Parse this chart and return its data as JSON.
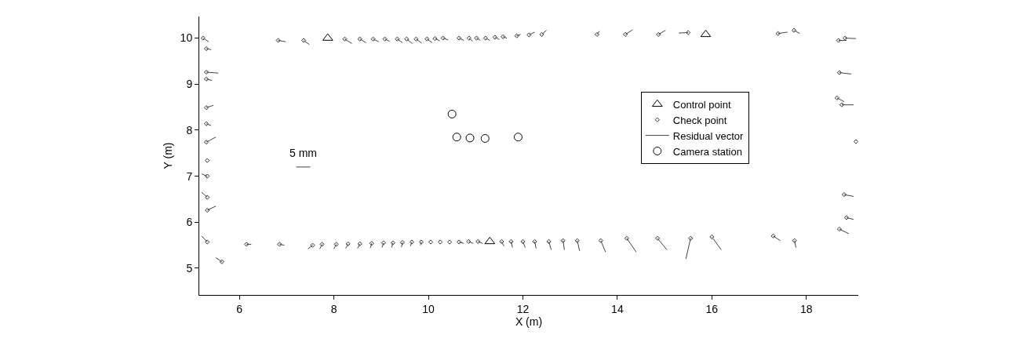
{
  "chart_data": {
    "type": "scatter",
    "xlabel": "X (m)",
    "ylabel": "Y (m)",
    "xlim": [
      5.15,
      19.1
    ],
    "ylim": [
      4.42,
      10.47
    ],
    "xticks": [
      6,
      8,
      10,
      12,
      14,
      16,
      18
    ],
    "yticks": [
      5,
      6,
      7,
      8,
      9,
      10
    ],
    "grid": false,
    "legend": "right",
    "annotations": [
      "5 mm"
    ],
    "series": [
      {
        "name": "Control point",
        "marker": "triangle",
        "color": "#000000",
        "x": [
          7.87,
          15.87,
          11.3
        ],
        "values": [
          10.0,
          10.08,
          5.58
        ]
      },
      {
        "name": "Check point",
        "marker": "diamond",
        "color": "#333333",
        "x": [
          5.23,
          6.82,
          7.36,
          8.23,
          8.55,
          8.83,
          9.08,
          9.34,
          9.54,
          9.74,
          9.97,
          10.14,
          10.31,
          10.65,
          10.86,
          11.02,
          11.21,
          11.41,
          11.58,
          11.87,
          12.13,
          12.4,
          13.57,
          14.17,
          14.87,
          15.5,
          17.4,
          17.74,
          18.68,
          18.82,
          5.3,
          5.3,
          5.3,
          5.3,
          5.3,
          5.3,
          5.32,
          5.32,
          5.32,
          5.32,
          5.32,
          5.63,
          6.15,
          6.85,
          7.55,
          7.75,
          8.05,
          8.3,
          8.55,
          8.8,
          9.05,
          9.25,
          9.45,
          9.65,
          9.85,
          10.05,
          10.25,
          10.45,
          10.65,
          10.85,
          11.05,
          11.55,
          11.75,
          12.0,
          12.25,
          12.55,
          12.85,
          13.15,
          13.65,
          14.2,
          14.85,
          15.55,
          16.0,
          17.3,
          17.75,
          18.7,
          18.65,
          18.75,
          19.05,
          18.8,
          18.85,
          18.7
        ],
        "values": [
          10.0,
          9.95,
          9.95,
          9.98,
          9.98,
          9.98,
          9.98,
          9.98,
          9.98,
          9.98,
          9.98,
          9.99,
          10.0,
          10.0,
          10.0,
          10.0,
          10.0,
          10.02,
          10.03,
          10.05,
          10.07,
          10.08,
          10.08,
          10.08,
          10.08,
          10.12,
          10.1,
          10.17,
          9.95,
          10.0,
          9.77,
          9.26,
          9.11,
          8.49,
          8.14,
          7.74,
          7.34,
          7.0,
          6.54,
          6.26,
          5.57,
          5.14,
          5.52,
          5.52,
          5.5,
          5.52,
          5.52,
          5.53,
          5.53,
          5.54,
          5.55,
          5.55,
          5.56,
          5.57,
          5.57,
          5.57,
          5.57,
          5.57,
          5.57,
          5.58,
          5.58,
          5.58,
          5.58,
          5.58,
          5.58,
          5.58,
          5.6,
          5.6,
          5.6,
          5.65,
          5.65,
          5.65,
          5.68,
          5.7,
          5.6,
          9.25,
          8.7,
          8.55,
          7.75,
          6.6,
          6.1,
          5.85
        ]
      },
      {
        "name": "Residual vector",
        "type": "line",
        "color": "#444444",
        "x": [
          5.23,
          5.35
        ],
        "values": [
          10.0,
          9.92
        ]
      },
      {
        "type": "line",
        "color": "#444444",
        "x": [
          6.82,
          6.98
        ],
        "values": [
          9.95,
          9.92
        ]
      },
      {
        "type": "line",
        "color": "#444444",
        "x": [
          7.36,
          7.48
        ],
        "values": [
          9.95,
          9.86
        ]
      },
      {
        "type": "line",
        "color": "#444444",
        "x": [
          8.23,
          8.38
        ],
        "values": [
          9.98,
          9.88
        ]
      },
      {
        "type": "line",
        "color": "#444444",
        "x": [
          8.55,
          8.68
        ],
        "values": [
          9.98,
          9.9
        ]
      },
      {
        "type": "line",
        "color": "#444444",
        "x": [
          8.83,
          8.95
        ],
        "values": [
          9.98,
          9.92
        ]
      },
      {
        "type": "line",
        "color": "#444444",
        "x": [
          9.08,
          9.18
        ],
        "values": [
          9.98,
          9.93
        ]
      },
      {
        "type": "line",
        "color": "#444444",
        "x": [
          9.34,
          9.45
        ],
        "values": [
          9.98,
          9.9
        ]
      },
      {
        "type": "line",
        "color": "#444444",
        "x": [
          9.54,
          9.66
        ],
        "values": [
          9.98,
          9.88
        ]
      },
      {
        "type": "line",
        "color": "#444444",
        "x": [
          9.74,
          9.86
        ],
        "values": [
          9.98,
          9.89
        ]
      },
      {
        "type": "line",
        "color": "#444444",
        "x": [
          9.97,
          10.08
        ],
        "values": [
          9.98,
          9.9
        ]
      },
      {
        "type": "line",
        "color": "#444444",
        "x": [
          10.14,
          10.24
        ],
        "values": [
          9.99,
          9.94
        ]
      },
      {
        "type": "line",
        "color": "#444444",
        "x": [
          10.31,
          10.42
        ],
        "values": [
          10.0,
          9.96
        ]
      },
      {
        "type": "line",
        "color": "#444444",
        "x": [
          10.65,
          10.75
        ],
        "values": [
          10.0,
          9.95
        ]
      },
      {
        "type": "line",
        "color": "#444444",
        "x": [
          10.86,
          10.94
        ],
        "values": [
          10.0,
          9.93
        ]
      },
      {
        "type": "line",
        "color": "#444444",
        "x": [
          11.02,
          11.1
        ],
        "values": [
          10.0,
          9.95
        ]
      },
      {
        "type": "line",
        "color": "#444444",
        "x": [
          11.21,
          11.3
        ],
        "values": [
          10.0,
          9.95
        ]
      },
      {
        "type": "line",
        "color": "#444444",
        "x": [
          11.41,
          11.5
        ],
        "values": [
          10.02,
          9.97
        ]
      },
      {
        "type": "line",
        "color": "#444444",
        "x": [
          11.58,
          11.66
        ],
        "values": [
          10.03,
          10.0
        ]
      },
      {
        "type": "line",
        "color": "#444444",
        "x": [
          11.87,
          11.95
        ],
        "values": [
          10.05,
          10.08
        ]
      },
      {
        "type": "line",
        "color": "#444444",
        "x": [
          12.13,
          12.25
        ],
        "values": [
          10.07,
          10.13
        ]
      },
      {
        "type": "line",
        "color": "#444444",
        "x": [
          12.4,
          12.5
        ],
        "values": [
          10.08,
          10.17
        ]
      },
      {
        "type": "line",
        "color": "#444444",
        "x": [
          13.57,
          13.62
        ],
        "values": [
          10.08,
          10.15
        ]
      },
      {
        "type": "line",
        "color": "#444444",
        "x": [
          14.17,
          14.32
        ],
        "values": [
          10.08,
          10.18
        ]
      },
      {
        "type": "line",
        "color": "#444444",
        "x": [
          14.87,
          15.02
        ],
        "values": [
          10.08,
          10.17
        ]
      },
      {
        "type": "line",
        "color": "#444444",
        "x": [
          15.3,
          15.5
        ],
        "values": [
          10.11,
          10.12
        ]
      },
      {
        "type": "line",
        "color": "#444444",
        "x": [
          17.4,
          17.6
        ],
        "values": [
          10.1,
          10.13
        ]
      },
      {
        "type": "line",
        "color": "#444444",
        "x": [
          17.74,
          17.86
        ],
        "values": [
          10.17,
          10.1
        ]
      },
      {
        "type": "line",
        "color": "#444444",
        "x": [
          18.68,
          18.85
        ],
        "values": [
          9.95,
          9.95
        ]
      },
      {
        "type": "line",
        "color": "#444444",
        "x": [
          18.82,
          19.05
        ],
        "values": [
          10.0,
          9.99
        ]
      },
      {
        "type": "line",
        "color": "#444444",
        "x": [
          5.3,
          5.4
        ],
        "values": [
          9.77,
          9.75
        ]
      },
      {
        "type": "line",
        "color": "#444444",
        "x": [
          5.3,
          5.55
        ],
        "values": [
          9.26,
          9.24
        ]
      },
      {
        "type": "line",
        "color": "#444444",
        "x": [
          5.3,
          5.42
        ],
        "values": [
          9.11,
          9.08
        ]
      },
      {
        "type": "line",
        "color": "#444444",
        "x": [
          5.3,
          5.45
        ],
        "values": [
          8.49,
          8.54
        ]
      },
      {
        "type": "line",
        "color": "#444444",
        "x": [
          5.3,
          5.4
        ],
        "values": [
          8.14,
          8.1
        ]
      },
      {
        "type": "line",
        "color": "#444444",
        "x": [
          5.3,
          5.5
        ],
        "values": [
          7.74,
          7.85
        ]
      },
      {
        "type": "line",
        "color": "#444444",
        "x": [
          5.2,
          5.32
        ],
        "values": [
          7.05,
          7.0
        ]
      },
      {
        "type": "line",
        "color": "#444444",
        "x": [
          5.2,
          5.32
        ],
        "values": [
          6.65,
          6.54
        ]
      },
      {
        "type": "line",
        "color": "#444444",
        "x": [
          5.32,
          5.5
        ],
        "values": [
          6.26,
          6.35
        ]
      },
      {
        "type": "line",
        "color": "#444444",
        "x": [
          5.2,
          5.32
        ],
        "values": [
          5.7,
          5.57
        ]
      },
      {
        "type": "line",
        "color": "#444444",
        "x": [
          5.5,
          5.63
        ],
        "values": [
          5.23,
          5.14
        ]
      },
      {
        "type": "line",
        "color": "#444444",
        "x": [
          6.15,
          6.25
        ],
        "values": [
          5.52,
          5.52
        ]
      },
      {
        "type": "line",
        "color": "#444444",
        "x": [
          6.85,
          6.95
        ],
        "values": [
          5.52,
          5.5
        ]
      },
      {
        "type": "line",
        "color": "#444444",
        "x": [
          7.45,
          7.55
        ],
        "values": [
          5.42,
          5.5
        ]
      },
      {
        "type": "line",
        "color": "#444444",
        "x": [
          7.7,
          7.75
        ],
        "values": [
          5.42,
          5.52
        ]
      },
      {
        "type": "line",
        "color": "#444444",
        "x": [
          8.0,
          8.05
        ],
        "values": [
          5.42,
          5.52
        ]
      },
      {
        "type": "line",
        "color": "#444444",
        "x": [
          8.25,
          8.3
        ],
        "values": [
          5.43,
          5.53
        ]
      },
      {
        "type": "line",
        "color": "#444444",
        "x": [
          8.5,
          8.55
        ],
        "values": [
          5.43,
          5.53
        ]
      },
      {
        "type": "line",
        "color": "#444444",
        "x": [
          8.77,
          8.8
        ],
        "values": [
          5.44,
          5.54
        ]
      },
      {
        "type": "line",
        "color": "#444444",
        "x": [
          9.02,
          9.05
        ],
        "values": [
          5.45,
          5.55
        ]
      },
      {
        "type": "line",
        "color": "#444444",
        "x": [
          9.22,
          9.25
        ],
        "values": [
          5.45,
          5.55
        ]
      },
      {
        "type": "line",
        "color": "#444444",
        "x": [
          9.43,
          9.45
        ],
        "values": [
          5.46,
          5.56
        ]
      },
      {
        "type": "line",
        "color": "#444444",
        "x": [
          9.62,
          9.65
        ],
        "values": [
          5.48,
          5.57
        ]
      },
      {
        "type": "line",
        "color": "#444444",
        "x": [
          9.83,
          9.85
        ],
        "values": [
          5.5,
          5.57
        ]
      },
      {
        "type": "line",
        "color": "#444444",
        "x": [
          10.65,
          10.75
        ],
        "values": [
          5.57,
          5.54
        ]
      },
      {
        "type": "line",
        "color": "#444444",
        "x": [
          10.85,
          10.95
        ],
        "values": [
          5.58,
          5.54
        ]
      },
      {
        "type": "line",
        "color": "#444444",
        "x": [
          11.05,
          11.15
        ],
        "values": [
          5.58,
          5.54
        ]
      },
      {
        "type": "line",
        "color": "#444444",
        "x": [
          11.55,
          11.6
        ],
        "values": [
          5.58,
          5.48
        ]
      },
      {
        "type": "line",
        "color": "#444444",
        "x": [
          11.75,
          11.78
        ],
        "values": [
          5.58,
          5.45
        ]
      },
      {
        "type": "line",
        "color": "#444444",
        "x": [
          12.0,
          12.05
        ],
        "values": [
          5.58,
          5.45
        ]
      },
      {
        "type": "line",
        "color": "#444444",
        "x": [
          12.25,
          12.28
        ],
        "values": [
          5.58,
          5.43
        ]
      },
      {
        "type": "line",
        "color": "#444444",
        "x": [
          12.55,
          12.6
        ],
        "values": [
          5.58,
          5.4
        ]
      },
      {
        "type": "line",
        "color": "#444444",
        "x": [
          12.85,
          12.88
        ],
        "values": [
          5.6,
          5.4
        ]
      },
      {
        "type": "line",
        "color": "#444444",
        "x": [
          13.15,
          13.2
        ],
        "values": [
          5.6,
          5.38
        ]
      },
      {
        "type": "line",
        "color": "#444444",
        "x": [
          13.65,
          13.75
        ],
        "values": [
          5.6,
          5.35
        ]
      },
      {
        "type": "line",
        "color": "#444444",
        "x": [
          14.2,
          14.4
        ],
        "values": [
          5.65,
          5.35
        ]
      },
      {
        "type": "line",
        "color": "#444444",
        "x": [
          14.85,
          15.05
        ],
        "values": [
          5.65,
          5.4
        ]
      },
      {
        "type": "line",
        "color": "#444444",
        "x": [
          15.45,
          15.55
        ],
        "values": [
          5.2,
          5.65
        ]
      },
      {
        "type": "line",
        "color": "#444444",
        "x": [
          16.0,
          16.2
        ],
        "values": [
          5.68,
          5.4
        ]
      },
      {
        "type": "line",
        "color": "#444444",
        "x": [
          17.3,
          17.45
        ],
        "values": [
          5.7,
          5.6
        ]
      },
      {
        "type": "line",
        "color": "#444444",
        "x": [
          17.75,
          17.78
        ],
        "values": [
          5.6,
          5.45
        ]
      },
      {
        "type": "line",
        "color": "#444444",
        "x": [
          18.7,
          18.95
        ],
        "values": [
          9.25,
          9.22
        ]
      },
      {
        "type": "line",
        "color": "#444444",
        "x": [
          18.65,
          18.8
        ],
        "values": [
          8.7,
          8.62
        ]
      },
      {
        "type": "line",
        "color": "#444444",
        "x": [
          18.75,
          19.0
        ],
        "values": [
          8.55,
          8.55
        ]
      },
      {
        "type": "line",
        "color": "#444444",
        "x": [
          18.8,
          19.0
        ],
        "values": [
          6.6,
          6.56
        ]
      },
      {
        "type": "line",
        "color": "#444444",
        "x": [
          18.85,
          19.0
        ],
        "values": [
          6.1,
          6.06
        ]
      },
      {
        "type": "line",
        "color": "#444444",
        "x": [
          18.7,
          18.9
        ],
        "values": [
          5.85,
          5.75
        ]
      },
      {
        "type": "line",
        "color": "#444444",
        "x": [
          7.2,
          7.5
        ],
        "values": [
          7.2,
          7.2
        ]
      },
      {
        "name": "Camera station",
        "marker": "circle",
        "color": "#000000",
        "x": [
          10.5,
          10.6,
          10.88,
          11.2,
          11.9
        ],
        "values": [
          8.35,
          7.85,
          7.83,
          7.82,
          7.85
        ]
      }
    ]
  }
}
